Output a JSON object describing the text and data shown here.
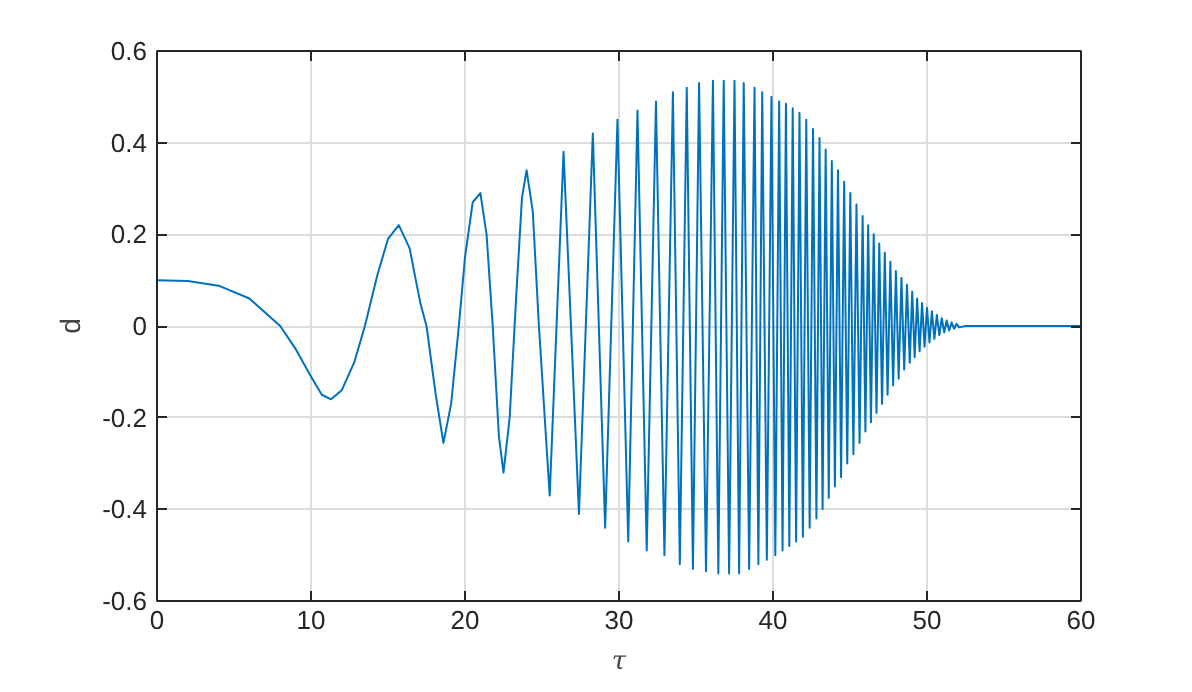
{
  "chart_data": {
    "type": "line",
    "xlabel": "τ",
    "ylabel": "d",
    "xlim": [
      0,
      60
    ],
    "ylim": [
      -0.6,
      0.6
    ],
    "xticks": [
      0,
      10,
      20,
      30,
      40,
      50,
      60
    ],
    "yticks": [
      -0.6,
      -0.4,
      -0.2,
      0,
      0.2,
      0.4,
      0.6
    ],
    "grid": true,
    "marker": "none",
    "line_style": "solid",
    "series": [
      {
        "color": "#0072bd",
        "x": [
          0,
          2,
          4,
          6,
          8,
          9,
          10,
          10.7,
          11.3,
          12,
          12.8,
          13.5,
          14.3,
          15,
          15.7,
          16.4,
          17.1,
          17.5,
          18.1,
          18.6,
          19.1,
          19.6,
          20.0,
          20.5,
          21.0,
          21.4,
          21.8,
          22.2,
          22.5,
          22.9,
          23.3,
          23.7,
          24.0,
          24.4,
          24.8,
          25.5,
          26.4,
          27.4,
          28.3,
          29.1,
          29.9,
          30.6,
          31.2,
          31.8,
          32.4,
          32.95,
          33.5,
          33.95,
          34.4,
          34.8,
          35.2,
          35.65,
          36.1,
          36.45,
          36.8,
          37.15,
          37.5,
          37.8,
          38.1,
          38.45,
          38.8,
          39.05,
          39.3,
          39.6,
          39.9,
          40.15,
          40.4,
          40.62,
          40.84,
          41.06,
          41.28,
          41.5,
          41.72,
          41.94,
          42.16,
          42.38,
          42.6,
          42.82,
          43.02,
          43.22,
          43.42,
          43.62,
          43.82,
          44.02,
          44.22,
          44.42,
          44.62,
          44.82,
          45.02,
          45.22,
          45.42,
          45.62,
          45.82,
          46.0,
          46.18,
          46.36,
          46.54,
          46.72,
          46.9,
          47.08,
          47.26,
          47.44,
          47.62,
          47.8,
          47.98,
          48.16,
          48.34,
          48.52,
          48.7,
          48.88,
          49.04,
          49.2,
          49.36,
          49.52,
          49.68,
          49.84,
          50.0,
          50.16,
          50.32,
          50.48,
          50.64,
          50.8,
          50.96,
          51.12,
          51.28,
          51.44,
          51.6,
          51.76,
          51.92,
          52.08,
          52.5,
          60
        ],
        "values": [
          0.1,
          0.098,
          0.088,
          0.06,
          0.0,
          -0.05,
          -0.11,
          -0.15,
          -0.16,
          -0.14,
          -0.08,
          0.0,
          0.11,
          0.19,
          0.22,
          0.17,
          0.05,
          0.0,
          -0.15,
          -0.255,
          -0.17,
          0.0,
          0.15,
          0.27,
          0.29,
          0.2,
          0.0,
          -0.24,
          -0.32,
          -0.2,
          0.05,
          0.28,
          0.34,
          0.25,
          0.0,
          -0.37,
          0.38,
          -0.41,
          0.42,
          -0.44,
          0.45,
          -0.47,
          0.47,
          -0.49,
          0.49,
          -0.5,
          0.51,
          -0.52,
          0.52,
          -0.53,
          0.53,
          -0.535,
          0.535,
          -0.54,
          0.535,
          -0.54,
          0.535,
          -0.54,
          0.53,
          -0.53,
          0.52,
          -0.52,
          0.51,
          -0.51,
          0.5,
          -0.5,
          0.49,
          -0.49,
          0.485,
          -0.48,
          0.475,
          -0.47,
          0.465,
          -0.46,
          0.45,
          -0.44,
          0.43,
          -0.42,
          0.41,
          -0.4,
          0.385,
          -0.375,
          0.36,
          -0.35,
          0.34,
          -0.33,
          0.315,
          -0.3,
          0.29,
          -0.28,
          0.265,
          -0.255,
          0.24,
          -0.23,
          0.22,
          -0.21,
          0.2,
          -0.19,
          0.18,
          -0.17,
          0.16,
          -0.15,
          0.14,
          -0.13,
          0.12,
          -0.115,
          0.105,
          -0.095,
          0.09,
          -0.08,
          0.075,
          -0.068,
          0.06,
          -0.055,
          0.05,
          -0.045,
          0.04,
          -0.036,
          0.032,
          -0.028,
          0.024,
          -0.02,
          0.017,
          -0.014,
          0.012,
          -0.01,
          0.008,
          -0.006,
          0.005,
          -0.003,
          0,
          0
        ]
      }
    ]
  }
}
